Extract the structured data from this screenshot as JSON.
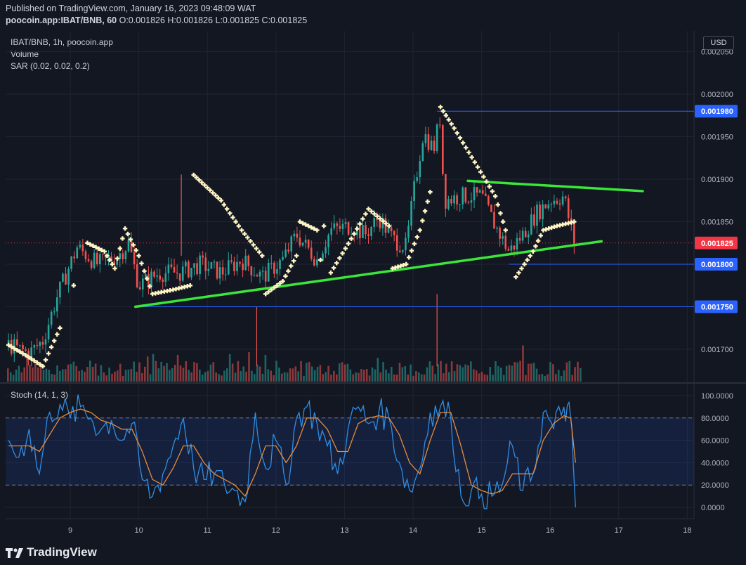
{
  "header": {
    "published": "Published on TradingView.com, January 16, 2023 09:48:09 WAT",
    "symbol_line": "poocoin.app:IBAT/BNB, 60",
    "ohlc": "O:0.001826 H:0.001826 L:0.001825 C:0.001825"
  },
  "legend": {
    "title": "IBAT/BNB, 1h, poocoin.app",
    "volume": "Volume",
    "sar": "SAR (0.02, 0.02, 0.2)",
    "stoch": "Stoch (14, 1, 3)"
  },
  "currency_button": "USD",
  "brand": "TradingView",
  "colors": {
    "background": "#131722",
    "up": "#26a69a",
    "down": "#ef5350",
    "sar": "#fff5c4",
    "trendline": "#39e639",
    "level_line": "#2962ff",
    "stoch_k": "#2f8ee6",
    "stoch_d": "#e88b3a",
    "last_price": "#f23645"
  },
  "chart_data": [
    {
      "type": "candlestick",
      "title": "IBAT/BNB, 1h, poocoin.app",
      "x_ticks": [
        "9",
        "10",
        "11",
        "12",
        "13",
        "14",
        "15",
        "16",
        "17",
        "18"
      ],
      "y_ticks": [
        "0.002050",
        "0.002000",
        "0.001950",
        "0.001900",
        "0.001850",
        "0.001800",
        "0.001750",
        "0.001700"
      ],
      "ylim": [
        0.00167,
        0.00206
      ],
      "xlim_days": [
        8.1,
        18.0
      ],
      "price_path": [
        [
          8.1,
          0.001705
        ],
        [
          8.4,
          0.001695
        ],
        [
          8.6,
          0.00171
        ],
        [
          8.8,
          0.00176
        ],
        [
          9.1,
          0.00182
        ],
        [
          9.4,
          0.0018
        ],
        [
          9.7,
          0.00181
        ],
        [
          9.85,
          0.001825
        ],
        [
          10.0,
          0.001775
        ],
        [
          10.3,
          0.00179
        ],
        [
          10.6,
          0.00179
        ],
        [
          10.9,
          0.0018
        ],
        [
          11.2,
          0.00179
        ],
        [
          11.5,
          0.001805
        ],
        [
          11.8,
          0.001785
        ],
        [
          12.1,
          0.001805
        ],
        [
          12.3,
          0.001835
        ],
        [
          12.6,
          0.001805
        ],
        [
          12.8,
          0.00184
        ],
        [
          13.1,
          0.001845
        ],
        [
          13.3,
          0.001835
        ],
        [
          13.5,
          0.001855
        ],
        [
          13.7,
          0.00183
        ],
        [
          13.9,
          0.00182
        ],
        [
          14.0,
          0.00188
        ],
        [
          14.15,
          0.001955
        ],
        [
          14.3,
          0.001935
        ],
        [
          14.4,
          0.001975
        ],
        [
          14.45,
          0.001875
        ],
        [
          14.7,
          0.00188
        ],
        [
          15.0,
          0.00188
        ],
        [
          15.2,
          0.001845
        ],
        [
          15.4,
          0.001815
        ],
        [
          15.6,
          0.001835
        ],
        [
          15.8,
          0.00186
        ],
        [
          16.0,
          0.001875
        ],
        [
          16.2,
          0.00188
        ],
        [
          16.35,
          0.001825
        ]
      ],
      "sar_dots": [
        [
          8.1,
          0.001705
        ],
        [
          8.35,
          0.001693
        ],
        [
          8.6,
          0.00168
        ],
        [
          8.85,
          0.001725
        ],
        [
          9.05,
          0.001775
        ],
        [
          9.25,
          0.001825
        ],
        [
          9.5,
          0.001815
        ],
        [
          9.65,
          0.001795
        ],
        [
          9.8,
          0.001842
        ],
        [
          10.0,
          0.00181
        ],
        [
          10.2,
          0.001765
        ],
        [
          10.5,
          0.00177
        ],
        [
          10.75,
          0.001775
        ],
        [
          10.8,
          0.001905
        ],
        [
          11.2,
          0.001875
        ],
        [
          11.5,
          0.00184
        ],
        [
          11.8,
          0.00181
        ],
        [
          11.85,
          0.001765
        ],
        [
          12.1,
          0.00178
        ],
        [
          12.3,
          0.00181
        ],
        [
          12.35,
          0.00185
        ],
        [
          12.6,
          0.00184
        ],
        [
          12.65,
          0.001805
        ],
        [
          12.7,
          0.001845
        ],
        [
          12.8,
          0.00179
        ],
        [
          13.1,
          0.00183
        ],
        [
          13.35,
          0.001865
        ],
        [
          13.65,
          0.001845
        ],
        [
          13.7,
          0.001795
        ],
        [
          13.9,
          0.0018
        ],
        [
          14.1,
          0.00184
        ],
        [
          14.25,
          0.001885
        ],
        [
          14.4,
          0.001985
        ],
        [
          14.6,
          0.00196
        ],
        [
          14.9,
          0.00192
        ],
        [
          15.2,
          0.00188
        ],
        [
          15.35,
          0.00184
        ],
        [
          15.5,
          0.001785
        ],
        [
          15.75,
          0.001815
        ],
        [
          15.9,
          0.00184
        ],
        [
          16.1,
          0.001845
        ],
        [
          16.35,
          0.00185
        ]
      ],
      "price_tags": [
        {
          "label": "0.001980",
          "value": 0.00198,
          "color": "#2962ff",
          "line_from_day": 14.35
        },
        {
          "label": "0.001825",
          "value": 0.001825,
          "color": "#f23645"
        },
        {
          "label": "0.001800",
          "value": 0.0018,
          "color": "#2962ff",
          "line_from_day": 15.4
        },
        {
          "label": "0.001750",
          "value": 0.00175,
          "color": "#2962ff",
          "line_from_day": 9.95
        }
      ],
      "trendlines": [
        {
          "x1_day": 9.95,
          "y1": 0.00175,
          "x2_day": 16.75,
          "y2": 0.001827
        },
        {
          "x1_day": 14.8,
          "y1": 0.001898,
          "x2_day": 17.35,
          "y2": 0.001886
        }
      ],
      "volume_spikes": [
        {
          "day": 10.62,
          "height": 0.0019055,
          "color": "#ef5350",
          "from_value": 0.00181
        },
        {
          "day": 11.72,
          "height": 0.00175,
          "color": "#ef5350",
          "from_value": 0.00168
        },
        {
          "day": 14.35,
          "height": 0.001765,
          "color": "#ef5350",
          "from_value": 0.00168
        }
      ]
    },
    {
      "type": "line",
      "title": "Stoch (14, 1, 3)",
      "y_ticks": [
        "100.0000",
        "80.0000",
        "60.0000",
        "40.0000",
        "20.0000",
        "0.0000"
      ],
      "ylim": [
        -8,
        108
      ],
      "bands": [
        20,
        80
      ],
      "x_days": [
        8.1,
        8.25,
        8.4,
        8.55,
        8.7,
        8.85,
        9.0,
        9.15,
        9.3,
        9.45,
        9.6,
        9.75,
        9.9,
        10.05,
        10.2,
        10.35,
        10.5,
        10.65,
        10.8,
        10.95,
        11.1,
        11.25,
        11.4,
        11.55,
        11.7,
        11.85,
        12.0,
        12.15,
        12.3,
        12.45,
        12.6,
        12.75,
        12.9,
        13.05,
        13.2,
        13.35,
        13.5,
        13.65,
        13.8,
        13.95,
        14.1,
        14.25,
        14.4,
        14.55,
        14.7,
        14.85,
        15.0,
        15.15,
        15.3,
        15.45,
        15.6,
        15.75,
        15.9,
        16.05,
        16.2,
        16.3,
        16.37
      ],
      "series": [
        {
          "name": "",
          "color": "#2f8ee6",
          "values": [
            60,
            45,
            70,
            30,
            85,
            92,
            80,
            90,
            80,
            70,
            78,
            60,
            75,
            25,
            10,
            30,
            55,
            80,
            35,
            25,
            30,
            20,
            15,
            5,
            85,
            35,
            60,
            20,
            80,
            90,
            75,
            55,
            30,
            70,
            90,
            75,
            85,
            80,
            40,
            15,
            35,
            85,
            90,
            80,
            10,
            15,
            12,
            10,
            20,
            55,
            15,
            30,
            85,
            70,
            90,
            80,
            0
          ]
        },
        {
          "name": "",
          "color": "#e88b3a",
          "values": [
            55,
            55,
            55,
            50,
            65,
            80,
            85,
            88,
            85,
            78,
            75,
            70,
            70,
            50,
            25,
            20,
            35,
            55,
            55,
            40,
            30,
            25,
            20,
            10,
            30,
            55,
            55,
            40,
            55,
            80,
            80,
            70,
            50,
            50,
            75,
            80,
            82,
            80,
            65,
            40,
            30,
            60,
            85,
            85,
            55,
            20,
            15,
            12,
            15,
            30,
            30,
            30,
            60,
            75,
            82,
            80,
            40
          ]
        }
      ]
    }
  ]
}
